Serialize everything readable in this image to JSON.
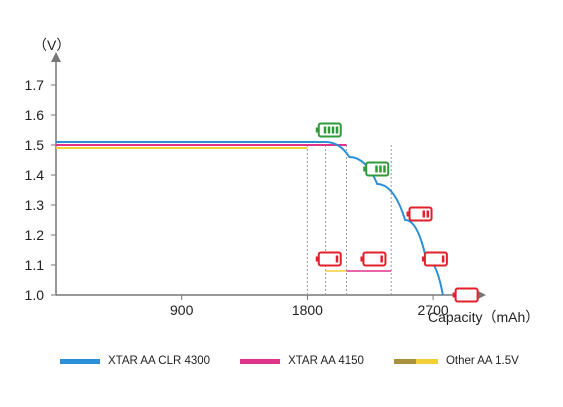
{
  "chart_data": {
    "type": "line",
    "ylabel": "（V）",
    "xlabel": "Capacity（mAh）",
    "ylim": [
      1.0,
      1.8
    ],
    "xlim": [
      0,
      3000
    ],
    "yticks": [
      "1.0",
      "1.1",
      "1.2",
      "1.3",
      "1.4",
      "1.5",
      "1.6",
      "1.7"
    ],
    "xticks": [
      "900",
      "1800",
      "2700"
    ],
    "series": [
      {
        "name": "XTAR AA CLR 4300",
        "color": "#2b8fd8",
        "x": [
          0,
          1930,
          2100,
          2300,
          2500,
          2650,
          2770
        ],
        "y": [
          1.51,
          1.51,
          1.46,
          1.37,
          1.25,
          1.12,
          1.0
        ]
      },
      {
        "name": "XTAR AA 4150",
        "color": "#e0338a",
        "x": [
          0,
          2080
        ],
        "y": [
          1.5,
          1.5
        ]
      },
      {
        "name": "Other AA 1.5V",
        "color": "#f0cf3a",
        "color2": "#a89040",
        "x": [
          0,
          1800
        ],
        "y": [
          1.49,
          1.49
        ]
      }
    ],
    "low_segments": [
      {
        "color": "#f0cf3a",
        "x": [
          1930,
          2080
        ],
        "y": 1.08
      },
      {
        "color": "#e0338a",
        "x": [
          2080,
          2400
        ],
        "y": 1.08
      }
    ],
    "drop_lines_x": [
      1800,
      1930,
      2080,
      2400
    ],
    "battery_icons": [
      {
        "color": "#2f9a3a",
        "level": 4,
        "x": 1960,
        "y": 1.55
      },
      {
        "color": "#2f9a3a",
        "level": 3,
        "x": 2300,
        "y": 1.42
      },
      {
        "color": "#e0202a",
        "level": 2,
        "x": 2610,
        "y": 1.27
      },
      {
        "color": "#e0202a",
        "level": 1,
        "x": 1960,
        "y": 1.12
      },
      {
        "color": "#e0202a",
        "level": 1,
        "x": 2280,
        "y": 1.12
      },
      {
        "color": "#e0202a",
        "level": 1,
        "x": 2720,
        "y": 1.12
      },
      {
        "color": "#e0202a",
        "level": 0,
        "x": 2940,
        "y": 1.0
      }
    ],
    "grid": false,
    "legend_position": "bottom"
  }
}
